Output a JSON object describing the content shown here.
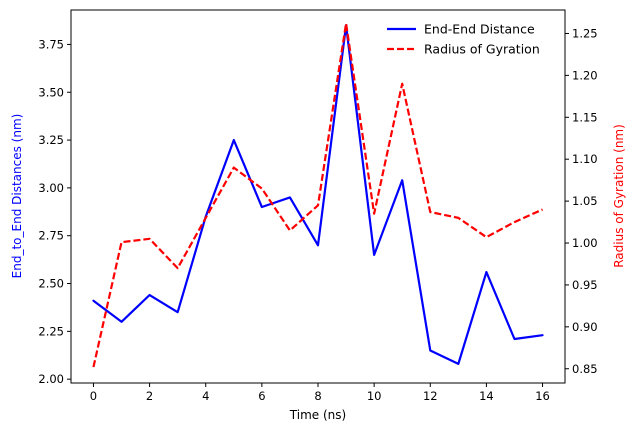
{
  "chart_data": {
    "type": "line",
    "title": "",
    "xlabel": "Time (ns)",
    "ylabel_left": "End_to_End Distances (nm)",
    "ylabel_right": "Radius of Gyration (nm)",
    "xlim": [
      -0.8,
      16.8
    ],
    "ylim_left": [
      1.98,
      3.93
    ],
    "ylim_right": [
      0.833,
      1.278
    ],
    "xticks": [
      0,
      2,
      4,
      6,
      8,
      10,
      12,
      14,
      16
    ],
    "yticks_left": [
      2.0,
      2.25,
      2.5,
      2.75,
      3.0,
      3.25,
      3.5,
      3.75
    ],
    "yticks_right": [
      0.85,
      0.9,
      0.95,
      1.0,
      1.05,
      1.1,
      1.15,
      1.2,
      1.25
    ],
    "legend_position": "top-right",
    "grid": false,
    "x": [
      0,
      1,
      2,
      3,
      4,
      5,
      6,
      7,
      8,
      9,
      10,
      11,
      12,
      13,
      14,
      15,
      16
    ],
    "series": [
      {
        "name": "End-End Distance",
        "axis": "left",
        "color": "#0000ff",
        "dash": "solid",
        "values": [
          2.41,
          2.3,
          2.44,
          2.35,
          2.85,
          3.25,
          2.9,
          2.95,
          2.7,
          3.85,
          2.65,
          3.04,
          2.15,
          2.08,
          2.56,
          2.21,
          2.23
        ]
      },
      {
        "name": "Radius of Gyration",
        "axis": "right",
        "color": "#ff0000",
        "dash": "dashed",
        "values": [
          0.852,
          1.001,
          1.005,
          0.97,
          1.03,
          1.09,
          1.065,
          1.015,
          1.045,
          1.262,
          1.035,
          1.19,
          1.037,
          1.03,
          1.007,
          1.025,
          1.04
        ]
      }
    ]
  }
}
